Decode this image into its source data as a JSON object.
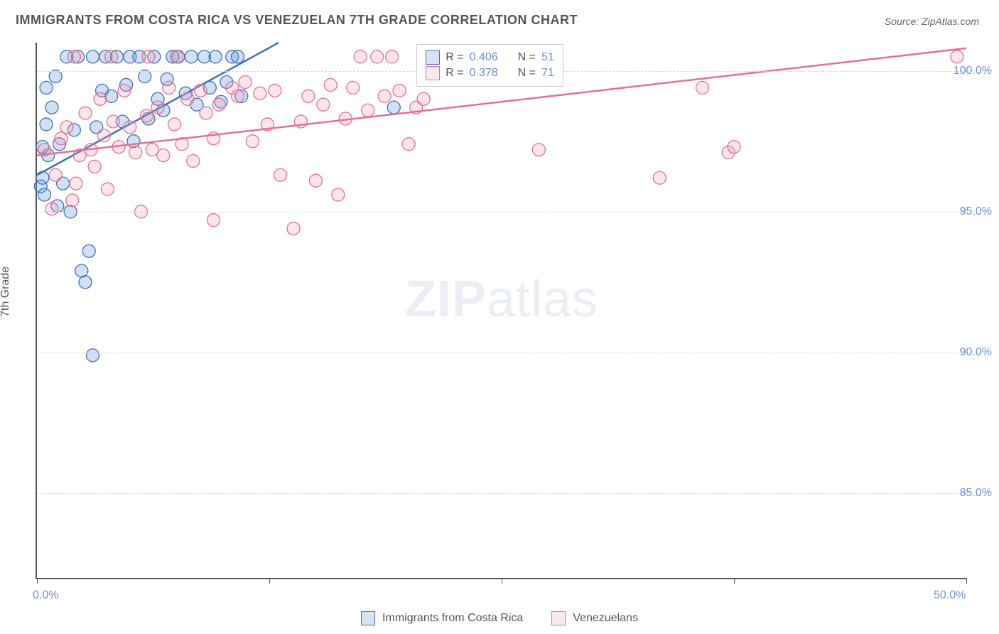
{
  "title": "IMMIGRANTS FROM COSTA RICA VS VENEZUELAN 7TH GRADE CORRELATION CHART",
  "source": "Source: ZipAtlas.com",
  "watermark": {
    "zip": "ZIP",
    "atlas": "atlas"
  },
  "yaxis": {
    "title": "7th Grade"
  },
  "chart": {
    "type": "scatter",
    "background_color": "#ffffff",
    "grid_color": "#d8d8d8",
    "axis_color": "#555555",
    "xlim": [
      0.0,
      50.0
    ],
    "ylim": [
      82.0,
      101.0
    ],
    "xticks": [
      0.0,
      12.5,
      25.0,
      37.5,
      50.0
    ],
    "xtick_labels": {
      "first": "0.0%",
      "last": "50.0%"
    },
    "yticks": [
      85.0,
      90.0,
      95.0,
      100.0
    ],
    "ytick_labels": [
      "85.0%",
      "90.0%",
      "95.0%",
      "100.0%"
    ],
    "marker_radius": 9,
    "marker_fill_opacity": 0.28,
    "marker_stroke_width": 1.3,
    "trend_line_width": 2.5,
    "series": [
      {
        "name": "Immigrants from Costa Rica",
        "color": "#5a8fd6",
        "stroke": "#3f72b7",
        "R": "0.406",
        "N": "51",
        "trend": {
          "x1": 0.0,
          "y1": 96.3,
          "x2": 13.0,
          "y2": 101.0
        },
        "points": [
          [
            0.2,
            95.9
          ],
          [
            0.3,
            96.2
          ],
          [
            0.4,
            95.6
          ],
          [
            0.3,
            97.3
          ],
          [
            0.5,
            98.1
          ],
          [
            0.6,
            97.0
          ],
          [
            0.8,
            98.7
          ],
          [
            0.5,
            99.4
          ],
          [
            1.0,
            99.8
          ],
          [
            1.2,
            97.4
          ],
          [
            1.4,
            96.0
          ],
          [
            1.6,
            100.5
          ],
          [
            1.8,
            95.0
          ],
          [
            2.0,
            97.9
          ],
          [
            2.2,
            100.5
          ],
          [
            2.4,
            92.9
          ],
          [
            2.6,
            92.5
          ],
          [
            2.8,
            93.6
          ],
          [
            3.0,
            100.5
          ],
          [
            3.2,
            98.0
          ],
          [
            3.5,
            99.3
          ],
          [
            3.7,
            100.5
          ],
          [
            3.0,
            89.9
          ],
          [
            4.0,
            99.1
          ],
          [
            4.3,
            100.5
          ],
          [
            4.6,
            98.2
          ],
          [
            4.8,
            99.5
          ],
          [
            5.0,
            100.5
          ],
          [
            5.2,
            97.5
          ],
          [
            5.5,
            100.5
          ],
          [
            5.8,
            99.8
          ],
          [
            6.0,
            98.3
          ],
          [
            6.3,
            100.5
          ],
          [
            6.5,
            99.0
          ],
          [
            6.8,
            98.6
          ],
          [
            7.0,
            99.7
          ],
          [
            7.3,
            100.5
          ],
          [
            7.6,
            100.5
          ],
          [
            8.0,
            99.2
          ],
          [
            8.3,
            100.5
          ],
          [
            8.6,
            98.8
          ],
          [
            9.0,
            100.5
          ],
          [
            9.3,
            99.4
          ],
          [
            9.6,
            100.5
          ],
          [
            9.9,
            98.9
          ],
          [
            10.2,
            99.6
          ],
          [
            10.5,
            100.5
          ],
          [
            10.8,
            100.5
          ],
          [
            11.0,
            99.1
          ],
          [
            19.2,
            98.7
          ],
          [
            1.1,
            95.2
          ]
        ]
      },
      {
        "name": "Venezuelans",
        "color": "#f4a3b8",
        "stroke": "#e27191",
        "R": "0.378",
        "N": "71",
        "trend": {
          "x1": 0.0,
          "y1": 97.0,
          "x2": 50.0,
          "y2": 100.8
        },
        "points": [
          [
            0.4,
            97.2
          ],
          [
            0.8,
            95.1
          ],
          [
            1.0,
            96.3
          ],
          [
            1.3,
            97.6
          ],
          [
            1.6,
            98.0
          ],
          [
            1.9,
            95.4
          ],
          [
            2.1,
            96.0
          ],
          [
            2.3,
            97.0
          ],
          [
            2.6,
            98.5
          ],
          [
            2.9,
            97.2
          ],
          [
            3.1,
            96.6
          ],
          [
            3.4,
            99.0
          ],
          [
            3.6,
            97.7
          ],
          [
            3.8,
            95.8
          ],
          [
            4.1,
            98.2
          ],
          [
            4.4,
            97.3
          ],
          [
            4.7,
            99.3
          ],
          [
            5.0,
            98.0
          ],
          [
            5.3,
            97.1
          ],
          [
            5.6,
            95.0
          ],
          [
            5.9,
            98.4
          ],
          [
            6.2,
            97.2
          ],
          [
            6.5,
            98.7
          ],
          [
            6.8,
            97.0
          ],
          [
            7.1,
            99.4
          ],
          [
            7.4,
            98.1
          ],
          [
            7.8,
            97.4
          ],
          [
            8.1,
            99.0
          ],
          [
            8.4,
            96.8
          ],
          [
            8.8,
            99.3
          ],
          [
            9.1,
            98.5
          ],
          [
            9.5,
            97.6
          ],
          [
            9.8,
            98.8
          ],
          [
            9.5,
            94.7
          ],
          [
            10.5,
            99.4
          ],
          [
            10.8,
            99.1
          ],
          [
            11.2,
            99.6
          ],
          [
            11.6,
            97.5
          ],
          [
            12.0,
            99.2
          ],
          [
            12.4,
            98.1
          ],
          [
            12.8,
            99.3
          ],
          [
            13.1,
            96.3
          ],
          [
            13.8,
            94.4
          ],
          [
            14.2,
            98.2
          ],
          [
            14.6,
            99.1
          ],
          [
            15.0,
            96.1
          ],
          [
            15.4,
            98.8
          ],
          [
            15.8,
            99.5
          ],
          [
            16.2,
            95.6
          ],
          [
            16.6,
            98.3
          ],
          [
            17.0,
            99.4
          ],
          [
            17.4,
            100.5
          ],
          [
            17.8,
            98.6
          ],
          [
            18.3,
            100.5
          ],
          [
            18.7,
            99.1
          ],
          [
            19.1,
            100.5
          ],
          [
            19.5,
            99.3
          ],
          [
            20.0,
            97.4
          ],
          [
            20.4,
            98.7
          ],
          [
            20.8,
            99.0
          ],
          [
            21.3,
            100.5
          ],
          [
            27.0,
            97.2
          ],
          [
            33.5,
            96.2
          ],
          [
            35.8,
            99.4
          ],
          [
            37.2,
            97.1
          ],
          [
            37.5,
            97.3
          ],
          [
            49.5,
            100.5
          ],
          [
            6.0,
            100.5
          ],
          [
            4.0,
            100.5
          ],
          [
            2.0,
            100.5
          ],
          [
            7.5,
            100.5
          ]
        ]
      }
    ]
  },
  "legend_top": {
    "rows": [
      {
        "swatch_color": "#5a8fd6",
        "swatch_border": "#3f72b7",
        "r_label": "R =",
        "r_val": "0.406",
        "n_label": "N =",
        "n_val": "51"
      },
      {
        "swatch_color": "#f4a3b8",
        "swatch_border": "#e27191",
        "r_label": "R =",
        "r_val": "0.378",
        "n_label": "N =",
        "n_val": "71"
      }
    ]
  },
  "legend_bottom": {
    "items": [
      {
        "swatch_color": "#5a8fd6",
        "swatch_border": "#3f72b7",
        "label": "Immigrants from Costa Rica"
      },
      {
        "swatch_color": "#f4a3b8",
        "swatch_border": "#e27191",
        "label": "Venezuelans"
      }
    ]
  }
}
